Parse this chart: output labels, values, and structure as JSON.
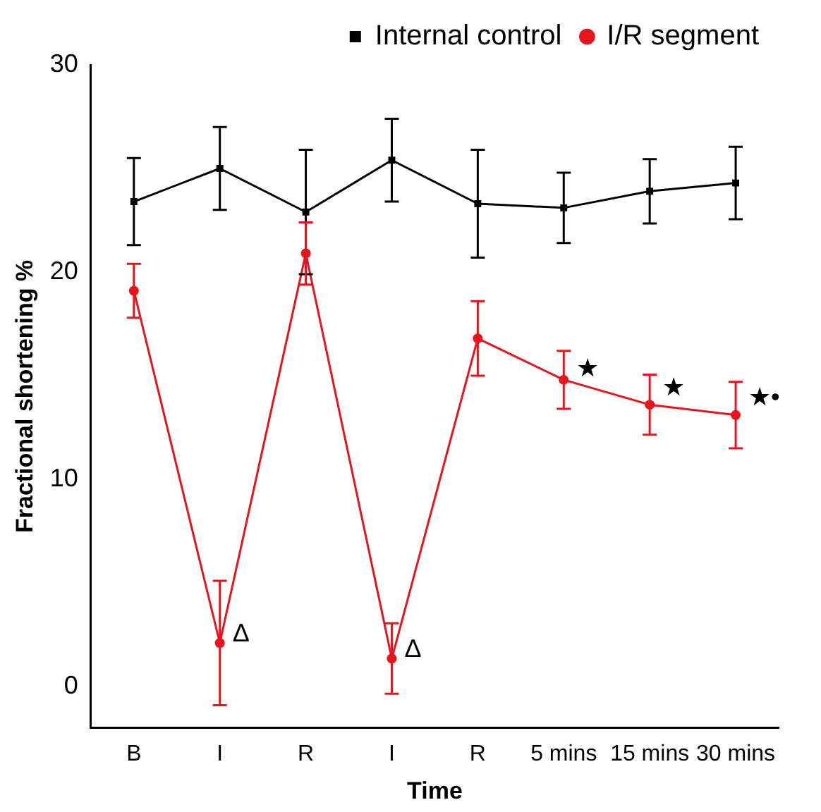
{
  "chart_data": {
    "type": "line",
    "xlabel": "Time",
    "ylabel": "Fractional shortening %",
    "categories": [
      "B",
      "I",
      "R",
      "I",
      "R",
      "5 mins",
      "15 mins",
      "30 mins"
    ],
    "series": [
      {
        "name": "Internal control",
        "color": "#000000",
        "marker": "square",
        "values": [
          23.4,
          25.0,
          22.9,
          25.4,
          23.3,
          23.1,
          23.9,
          24.3
        ],
        "errors": [
          2.1,
          2.0,
          3.0,
          2.0,
          2.6,
          1.7,
          1.55,
          1.75
        ]
      },
      {
        "name": "I/R segment",
        "color": "#e8141c",
        "marker": "circle",
        "values": [
          19.1,
          2.1,
          20.9,
          1.35,
          16.8,
          14.8,
          13.6,
          13.1
        ],
        "errors": [
          1.3,
          3.0,
          1.5,
          1.7,
          1.8,
          1.4,
          1.45,
          1.6
        ]
      }
    ],
    "annotations": [
      {
        "text": "Δ",
        "x": "I",
        "y": 2.5
      },
      "Δ",
      {
        "text": "★",
        "x": "5 mins",
        "y": 15.3
      },
      {
        "text": "★",
        "x": "15 mins",
        "y": 14.4
      },
      {
        "text": "★•",
        "x": "30 mins",
        "y": 13.9
      }
    ],
    "ylim": [
      -2,
      30
    ],
    "yticks": [
      0,
      10,
      20,
      30
    ],
    "grid": false,
    "legend": "top",
    "line_style": "solid"
  }
}
